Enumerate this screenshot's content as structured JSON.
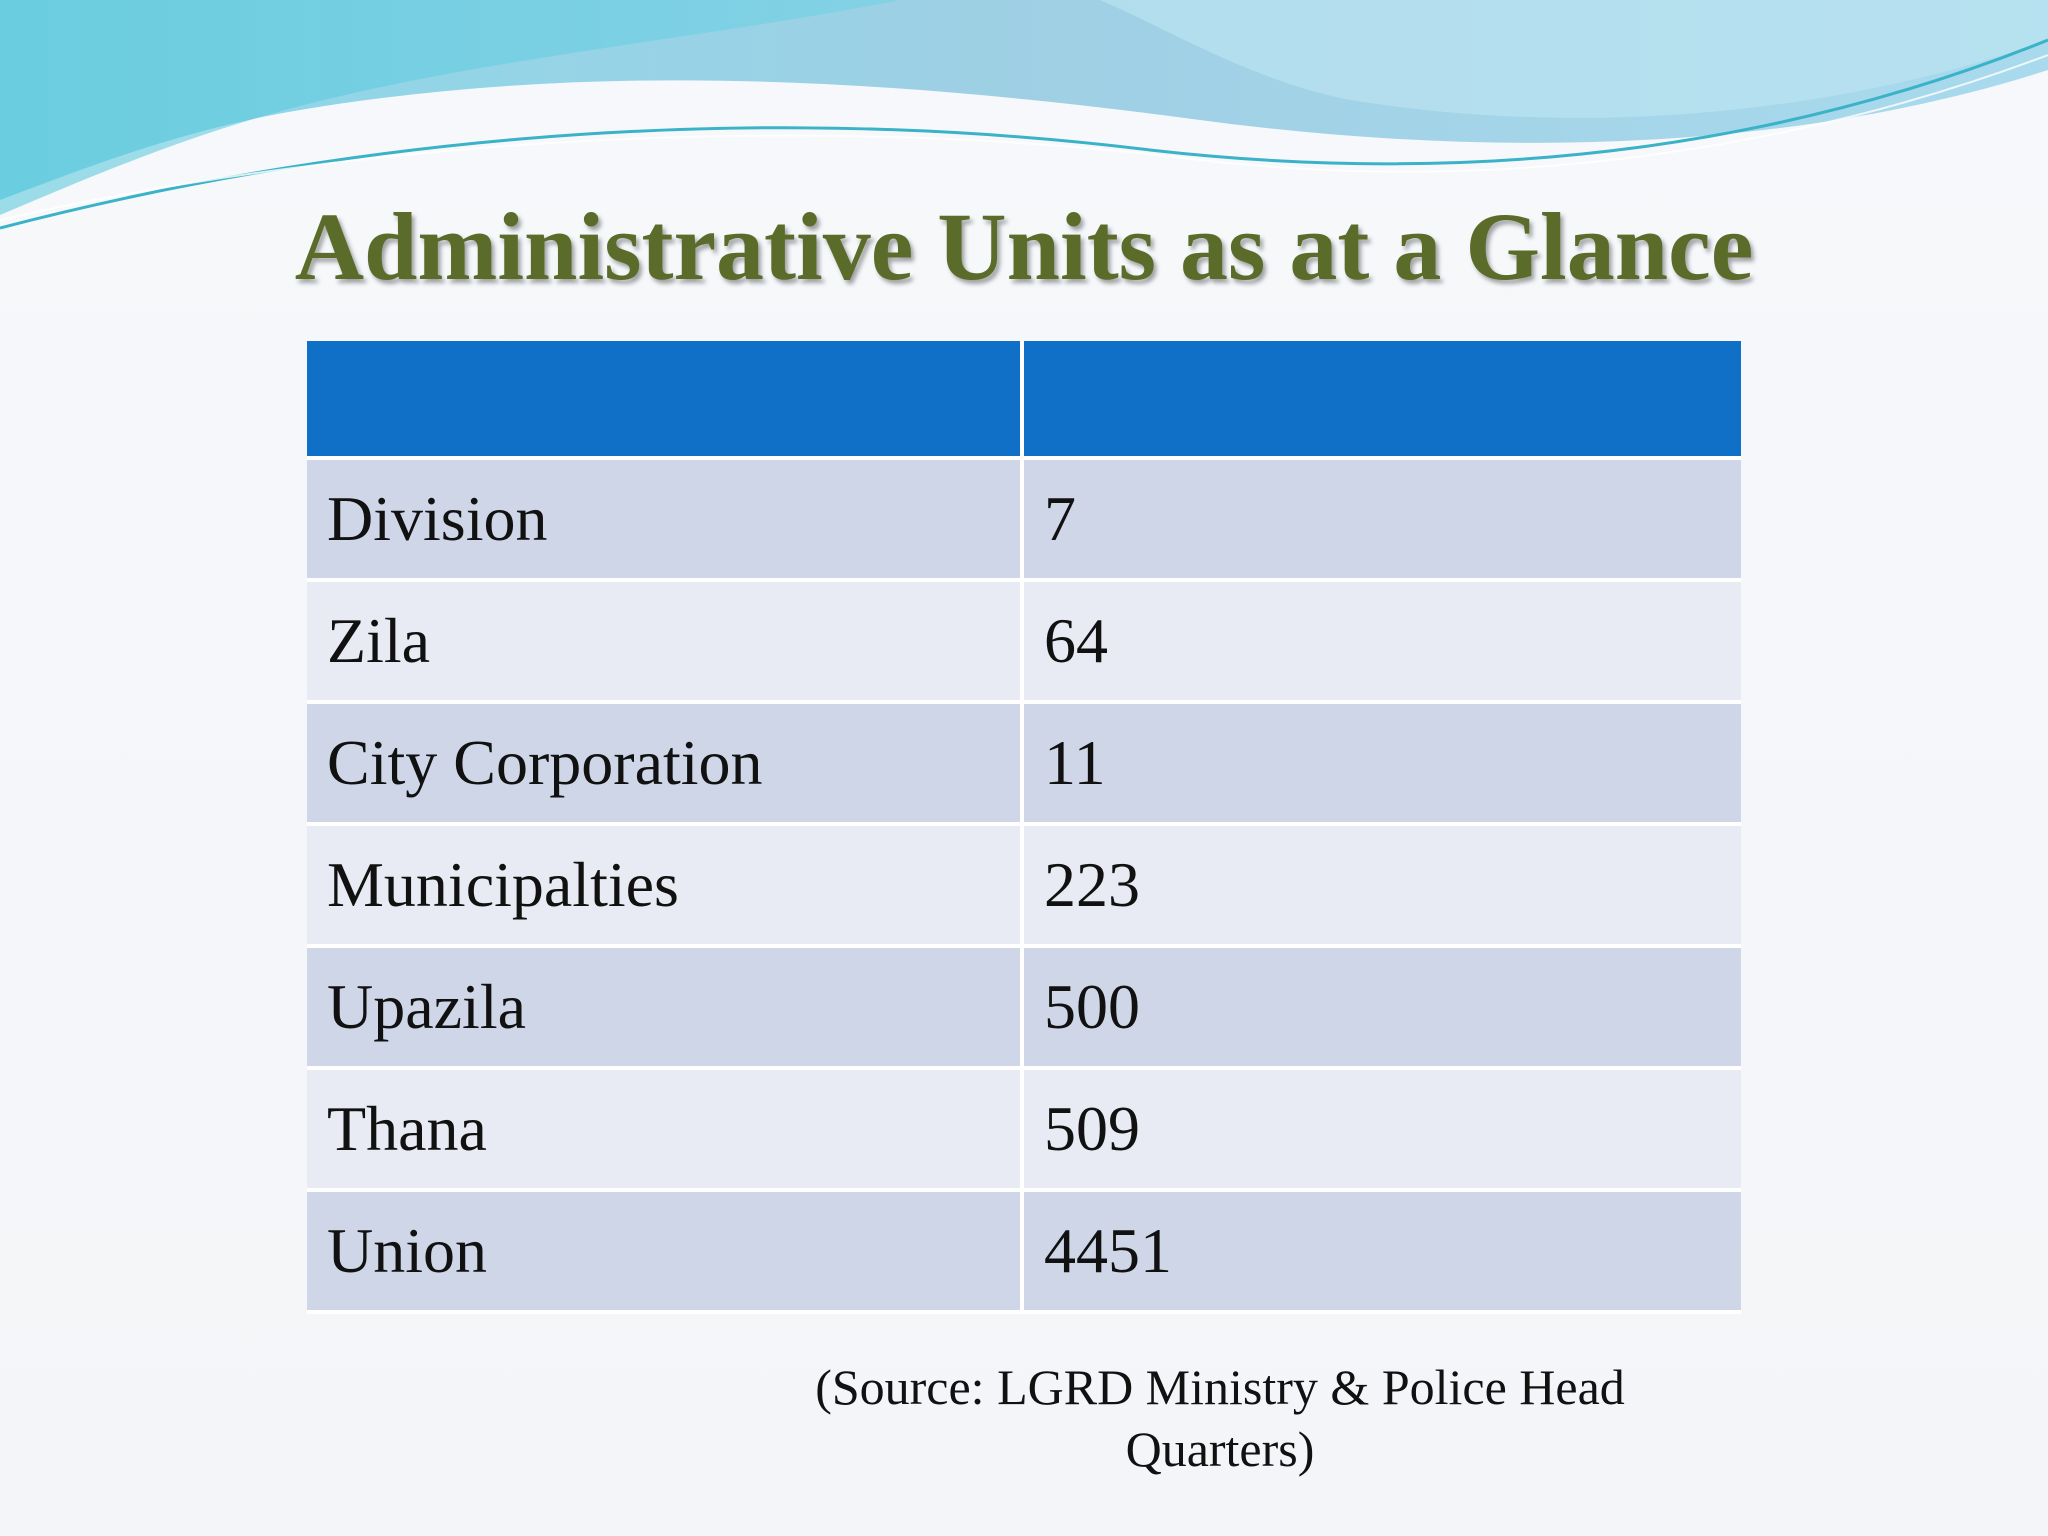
{
  "slide": {
    "title": "Administrative Units as at a Glance",
    "table": {
      "header": [
        "",
        ""
      ],
      "rows": [
        {
          "unit": "Division",
          "count": "7"
        },
        {
          "unit": "Zila",
          "count": "64"
        },
        {
          "unit": "City Corporation",
          "count": "11"
        },
        {
          "unit": "Municipalties",
          "count": "223"
        },
        {
          "unit": "Upazila",
          "count": "500"
        },
        {
          "unit": "Thana",
          "count": "509"
        },
        {
          "unit": "Union",
          "count": "4451"
        }
      ]
    },
    "source_line1": "(Source: LGRD Ministry & Police Head",
    "source_line2": "Quarters)"
  },
  "colors": {
    "title": "#5b6b2a",
    "header_fill": "#106fc6",
    "row_dark": "#cfd6e8",
    "row_light": "#e8ebf3"
  }
}
